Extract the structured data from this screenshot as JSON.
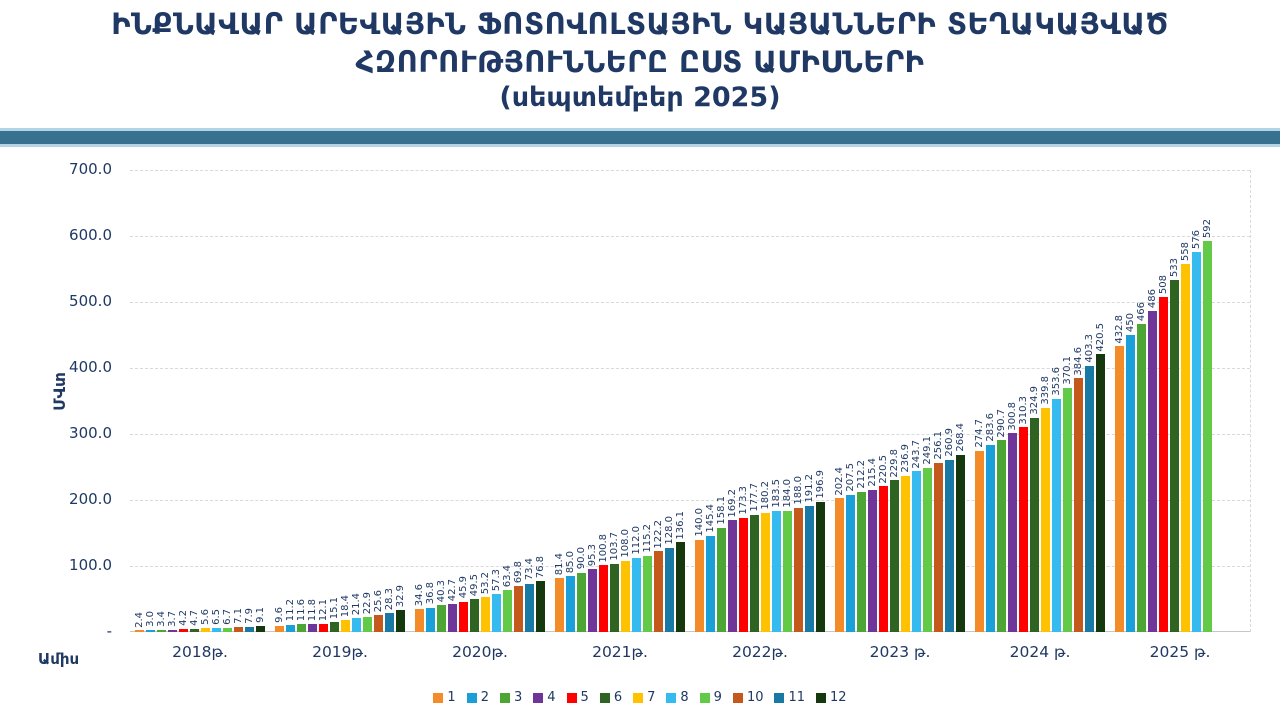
{
  "title": {
    "line1": "ԻՆՔՆԱՎԱՐ ԱՐԵՎԱՅԻՆ ՖՈՏՈՎՈԼՏԱՅԻՆ ԿԱՅԱՆՆԵՐԻ ՏԵՂԱԿԱՅՎԱԾ",
    "line2": "ՀԶՈՐՈՒԹՅՈՒՆՆԵՐԸ ԸՍՏ ԱՄԻՍՆԵՐԻ",
    "line3": "(սեպտեմբեր 2025)"
  },
  "colors": {
    "text": "#1F3864",
    "gridline": "#D9D9D9",
    "divider_fill": "#38718F",
    "divider_border": "#B3D4E4"
  },
  "chart_data": {
    "type": "bar",
    "title": "ԻՆՔՆԱՎԱՐ ԱՐԵՎԱՅԻՆ ՖՈՏՈՎՈԼՏԱՅԻՆ ԿԱՅԱՆՆԵՐԻ ՏԵՂԱԿԱՅՎԱԾ ՀԶՈՐՈՒԹՅՈՒՆՆԵՐԸ ԸՍՏ ԱՄԻՍՆԵՐԻ (սեպտեմբեր 2025)",
    "ylabel": "ՄՎտ",
    "xlabel": "Ամիս",
    "ylim": [
      0,
      700
    ],
    "grid": true,
    "legend_position": "bottom",
    "yticks": [
      {
        "label": "700.0",
        "value": 700
      },
      {
        "label": "600.0",
        "value": 600
      },
      {
        "label": "500.0",
        "value": 500
      },
      {
        "label": "400.0",
        "value": 400
      },
      {
        "label": "300.0",
        "value": 300
      },
      {
        "label": "200.0",
        "value": 200
      },
      {
        "label": "100.0",
        "value": 100
      },
      {
        "label": "-",
        "value": 0
      }
    ],
    "categories": [
      "2018թ.",
      "2019թ.",
      "2020թ.",
      "2021թ.",
      "2022թ.",
      "2023 թ.",
      "2024 թ.",
      "2025 թ."
    ],
    "series": [
      {
        "name": "1",
        "color": "#F28B28",
        "labels": [
          "2.4",
          "9.6",
          "34.6",
          "81.4",
          "140.0",
          "202.4",
          "274.7",
          "432.8"
        ]
      },
      {
        "name": "2",
        "color": "#1B9FD8",
        "labels": [
          "3.0",
          "11.2",
          "36.8",
          "85.0",
          "145.4",
          "207.5",
          "283.6",
          "450"
        ]
      },
      {
        "name": "3",
        "color": "#4DA535",
        "labels": [
          "3.4",
          "11.6",
          "40.3",
          "90.0",
          "158.1",
          "212.2",
          "290.7",
          "466"
        ]
      },
      {
        "name": "4",
        "color": "#6F3598",
        "labels": [
          "3.7",
          "11.8",
          "42.7",
          "95.3",
          "169.2",
          "215.4",
          "300.8",
          "486"
        ]
      },
      {
        "name": "5",
        "color": "#FE0000",
        "labels": [
          "4.2",
          "12.1",
          "45.9",
          "100.8",
          "173.3",
          "220.5",
          "310.3",
          "508"
        ]
      },
      {
        "name": "6",
        "color": "#2F6321",
        "labels": [
          "4.7",
          "15.1",
          "49.5",
          "103.7",
          "177.7",
          "229.8",
          "324.9",
          "533"
        ]
      },
      {
        "name": "7",
        "color": "#FEC200",
        "labels": [
          "5.6",
          "18.4",
          "53.2",
          "108.0",
          "180.2",
          "236.9",
          "339.8",
          "558"
        ]
      },
      {
        "name": "8",
        "color": "#36BBF1",
        "labels": [
          "6.5",
          "21.4",
          "57.3",
          "112.0",
          "183.5",
          "243.7",
          "353.6",
          "576"
        ]
      },
      {
        "name": "9",
        "color": "#62CA46",
        "labels": [
          "6.7",
          "22.9",
          "63.4",
          "115.2",
          "184.0",
          "249.1",
          "370.1",
          "592"
        ]
      },
      {
        "name": "10",
        "color": "#C3591B",
        "labels": [
          "7.1",
          "25.6",
          "69.8",
          "122.2",
          "188.0",
          "256.1",
          "384.6",
          null
        ]
      },
      {
        "name": "11",
        "color": "#1779A4",
        "labels": [
          "7.9",
          "28.3",
          "73.4",
          "128.0",
          "191.2",
          "260.9",
          "403.3",
          null
        ]
      },
      {
        "name": "12",
        "color": "#16380F",
        "labels": [
          "9.1",
          "32.9",
          "76.8",
          "136.1",
          "196.9",
          "268.4",
          "420.5",
          null
        ]
      }
    ]
  }
}
